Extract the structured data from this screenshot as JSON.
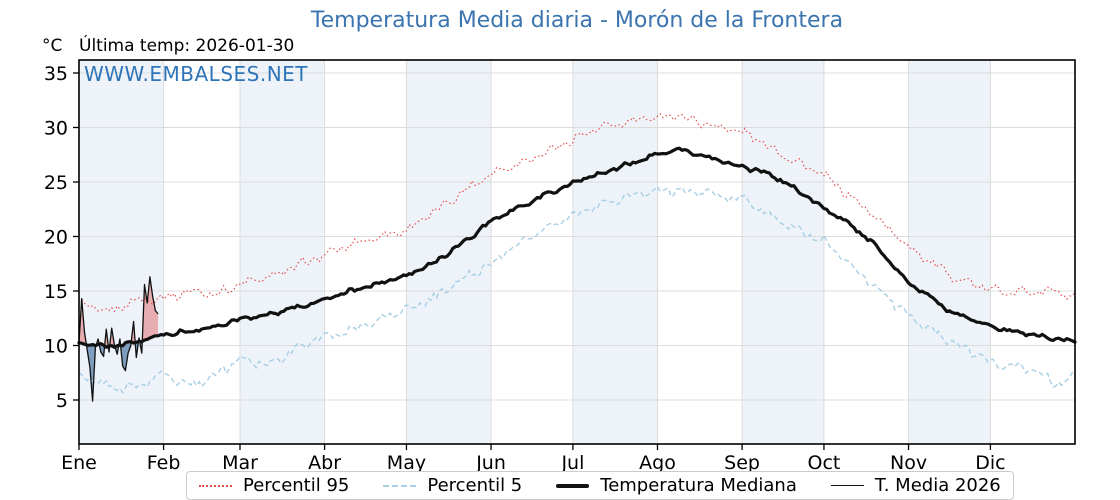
{
  "header": {
    "title": "Temperatura Media diaria - Morón de la Frontera",
    "units_label": "°C",
    "last_temp_label": "Última temp: 2026-01-30",
    "watermark": "WWW.EMBALSES.NET"
  },
  "legend": {
    "items": [
      {
        "label": "Percentil 95",
        "style": "dotted-red"
      },
      {
        "label": "Percentil 5",
        "style": "dashed-lightblue"
      },
      {
        "label": "Temperatura Mediana",
        "style": "solid-thick-black"
      },
      {
        "label": "T. Media 2026",
        "style": "solid-thin-black"
      }
    ]
  },
  "chart_data": {
    "type": "line",
    "title": "Temperatura Media diaria - Morón de la Frontera",
    "ylabel": "°C",
    "x_tick_labels": [
      "Ene",
      "Feb",
      "Mar",
      "Abr",
      "May",
      "Jun",
      "Jul",
      "Ago",
      "Sep",
      "Oct",
      "Nov",
      "Dic"
    ],
    "month_start_days": [
      0,
      31,
      59,
      90,
      120,
      151,
      181,
      212,
      243,
      273,
      304,
      334
    ],
    "y_ticks": [
      5,
      10,
      15,
      20,
      25,
      30,
      35
    ],
    "ylim": [
      1.0,
      36.2
    ],
    "xlim_days": [
      0,
      365
    ],
    "grid": true,
    "shaded_months": [
      0,
      2,
      4,
      6,
      8,
      10
    ],
    "band_color": "#edf3f9",
    "grid_color": "#dcdcdc",
    "title_color": "#3b74ae",
    "sample_days": [
      0,
      10,
      20,
      31,
      41,
      50,
      59,
      70,
      80,
      90,
      100,
      110,
      120,
      130,
      140,
      151,
      160,
      170,
      181,
      190,
      200,
      212,
      220,
      230,
      243,
      250,
      260,
      273,
      280,
      290,
      304,
      310,
      320,
      334,
      340,
      350,
      358,
      364
    ],
    "series": [
      {
        "name": "Percentil 95",
        "color": "#e64a4a",
        "style": "dotted",
        "values": [
          13.9,
          13.0,
          14.1,
          14.4,
          15.0,
          14.7,
          15.6,
          16.3,
          17.3,
          18.3,
          19.3,
          20.0,
          20.6,
          22.2,
          24.0,
          25.8,
          26.6,
          27.6,
          28.9,
          29.9,
          30.4,
          31.0,
          31.1,
          30.3,
          29.6,
          28.7,
          27.2,
          25.6,
          24.2,
          22.2,
          19.1,
          18.0,
          16.3,
          15.1,
          15.0,
          14.9,
          15.0,
          14.3
        ]
      },
      {
        "name": "Percentil 5",
        "color": "#a9cfe4",
        "style": "dashed",
        "values": [
          7.2,
          6.3,
          6.1,
          7.4,
          6.3,
          7.3,
          8.8,
          8.3,
          9.8,
          10.9,
          11.4,
          12.4,
          13.3,
          14.3,
          16.0,
          17.5,
          19.2,
          20.5,
          21.9,
          22.8,
          23.5,
          24.3,
          24.2,
          24.0,
          23.4,
          22.4,
          21.0,
          19.5,
          18.0,
          15.8,
          12.7,
          11.8,
          10.3,
          8.5,
          8.2,
          7.7,
          6.5,
          6.9
        ]
      },
      {
        "name": "Temperatura Mediana",
        "color": "#111111",
        "style": "solid-thick",
        "values": [
          10.3,
          9.9,
          10.2,
          11.0,
          11.3,
          11.7,
          12.4,
          12.9,
          13.5,
          14.2,
          15.0,
          15.7,
          16.4,
          17.6,
          19.3,
          21.4,
          22.5,
          23.7,
          24.9,
          25.7,
          26.5,
          27.6,
          28.0,
          27.3,
          26.4,
          26.0,
          24.8,
          22.6,
          21.6,
          19.6,
          15.7,
          14.8,
          13.0,
          11.8,
          11.4,
          11.0,
          10.6,
          10.4
        ]
      },
      {
        "name": "T. Media 2026",
        "color": "#111111",
        "style": "solid-thin",
        "start_day": 0,
        "daily_values": [
          10.3,
          14.3,
          11.2,
          9.6,
          8.0,
          4.9,
          9.8,
          10.6,
          9.4,
          9.0,
          11.5,
          9.4,
          11.6,
          10.0,
          9.2,
          10.6,
          8.1,
          7.7,
          9.3,
          10.0,
          12.2,
          8.9,
          10.7,
          9.3,
          15.6,
          13.9,
          16.3,
          14.5,
          13.2,
          12.9
        ]
      }
    ],
    "fills": {
      "above_median_color": "rgba(226,77,77,0.42)",
      "below_median_color": "rgba(52,101,154,0.60)"
    }
  }
}
